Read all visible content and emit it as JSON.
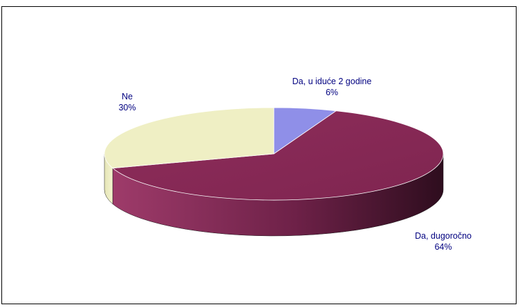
{
  "chart_data": {
    "type": "pie",
    "title": "",
    "slices": [
      {
        "label": "Da, u iduće 2 godine",
        "value": 6,
        "value_label": "6%",
        "color": "#8f8fe8"
      },
      {
        "label": "Da, dugoročno",
        "value": 64,
        "value_label": "64%",
        "color": "#8b2d5a"
      },
      {
        "label": "Ne",
        "value": 30,
        "value_label": "30%",
        "color": "#efefc4"
      }
    ],
    "legend": "none",
    "style": "3d-tilted"
  }
}
